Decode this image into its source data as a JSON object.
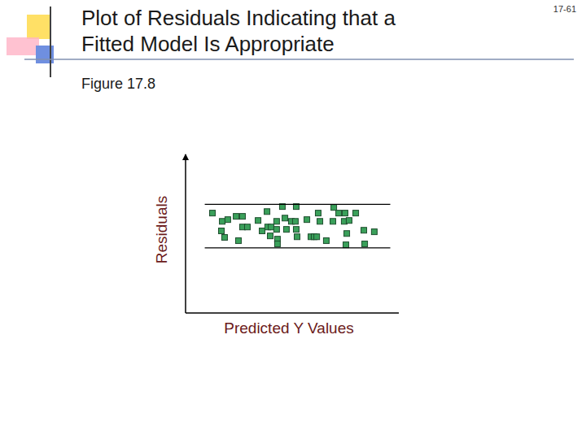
{
  "slide": {
    "figure_label": "Figure 17.8",
    "slide_number": "17-61"
  },
  "chart_data": {
    "type": "scatter",
    "title": "Plot of Residuals Indicating that a Fitted Model Is Appropriate",
    "x_label": "Predicted Y Values",
    "y_label": "Residuals",
    "xlim": [
      0,
      100
    ],
    "ylim": [
      -4,
      3.3
    ],
    "xticks": [],
    "yticks": [],
    "tick_labels": false,
    "grid": false,
    "color": "#3aa05a",
    "marker": "square",
    "band": {
      "y": [
        -1,
        1
      ],
      "x": [
        9,
        96
      ]
    },
    "series": [
      {
        "name": "Residuals",
        "x": [
          12.6,
          17.2,
          16.8,
          18.3,
          19.8,
          23.7,
          26.7,
          24.8,
          26.7,
          29.0,
          34.0,
          35.9,
          38.2,
          38.5,
          39.7,
          40.1,
          42.7,
          42.7,
          43.1,
          43.1,
          45.4,
          46.6,
          47.3,
          49.6,
          51.5,
          51.9,
          51.9,
          52.3,
          56.9,
          58.8,
          60.3,
          61.5,
          62.2,
          63.0,
          66.0,
          69.1,
          69.5,
          71.8,
          74.4,
          74.8,
          75.6,
          76.7,
          75.2,
          79.8,
          83.6,
          84.0,
          88.5
        ],
        "values": [
          0.6,
          0.22,
          -0.22,
          -0.52,
          0.3,
          0.45,
          0.45,
          -0.67,
          -0.04,
          -0.04,
          0.26,
          -0.22,
          0.67,
          -0.04,
          -0.45,
          -0.04,
          0.22,
          -0.15,
          -0.6,
          -0.82,
          0.9,
          0.37,
          -0.15,
          0.22,
          0.22,
          0.9,
          -0.15,
          -0.49,
          0.3,
          -0.49,
          -0.49,
          -0.49,
          0.6,
          0.22,
          -0.67,
          0.22,
          0.86,
          0.6,
          0.22,
          0.6,
          -0.34,
          0.26,
          -0.86,
          0.6,
          -0.19,
          -0.82,
          -0.26
        ]
      }
    ]
  }
}
